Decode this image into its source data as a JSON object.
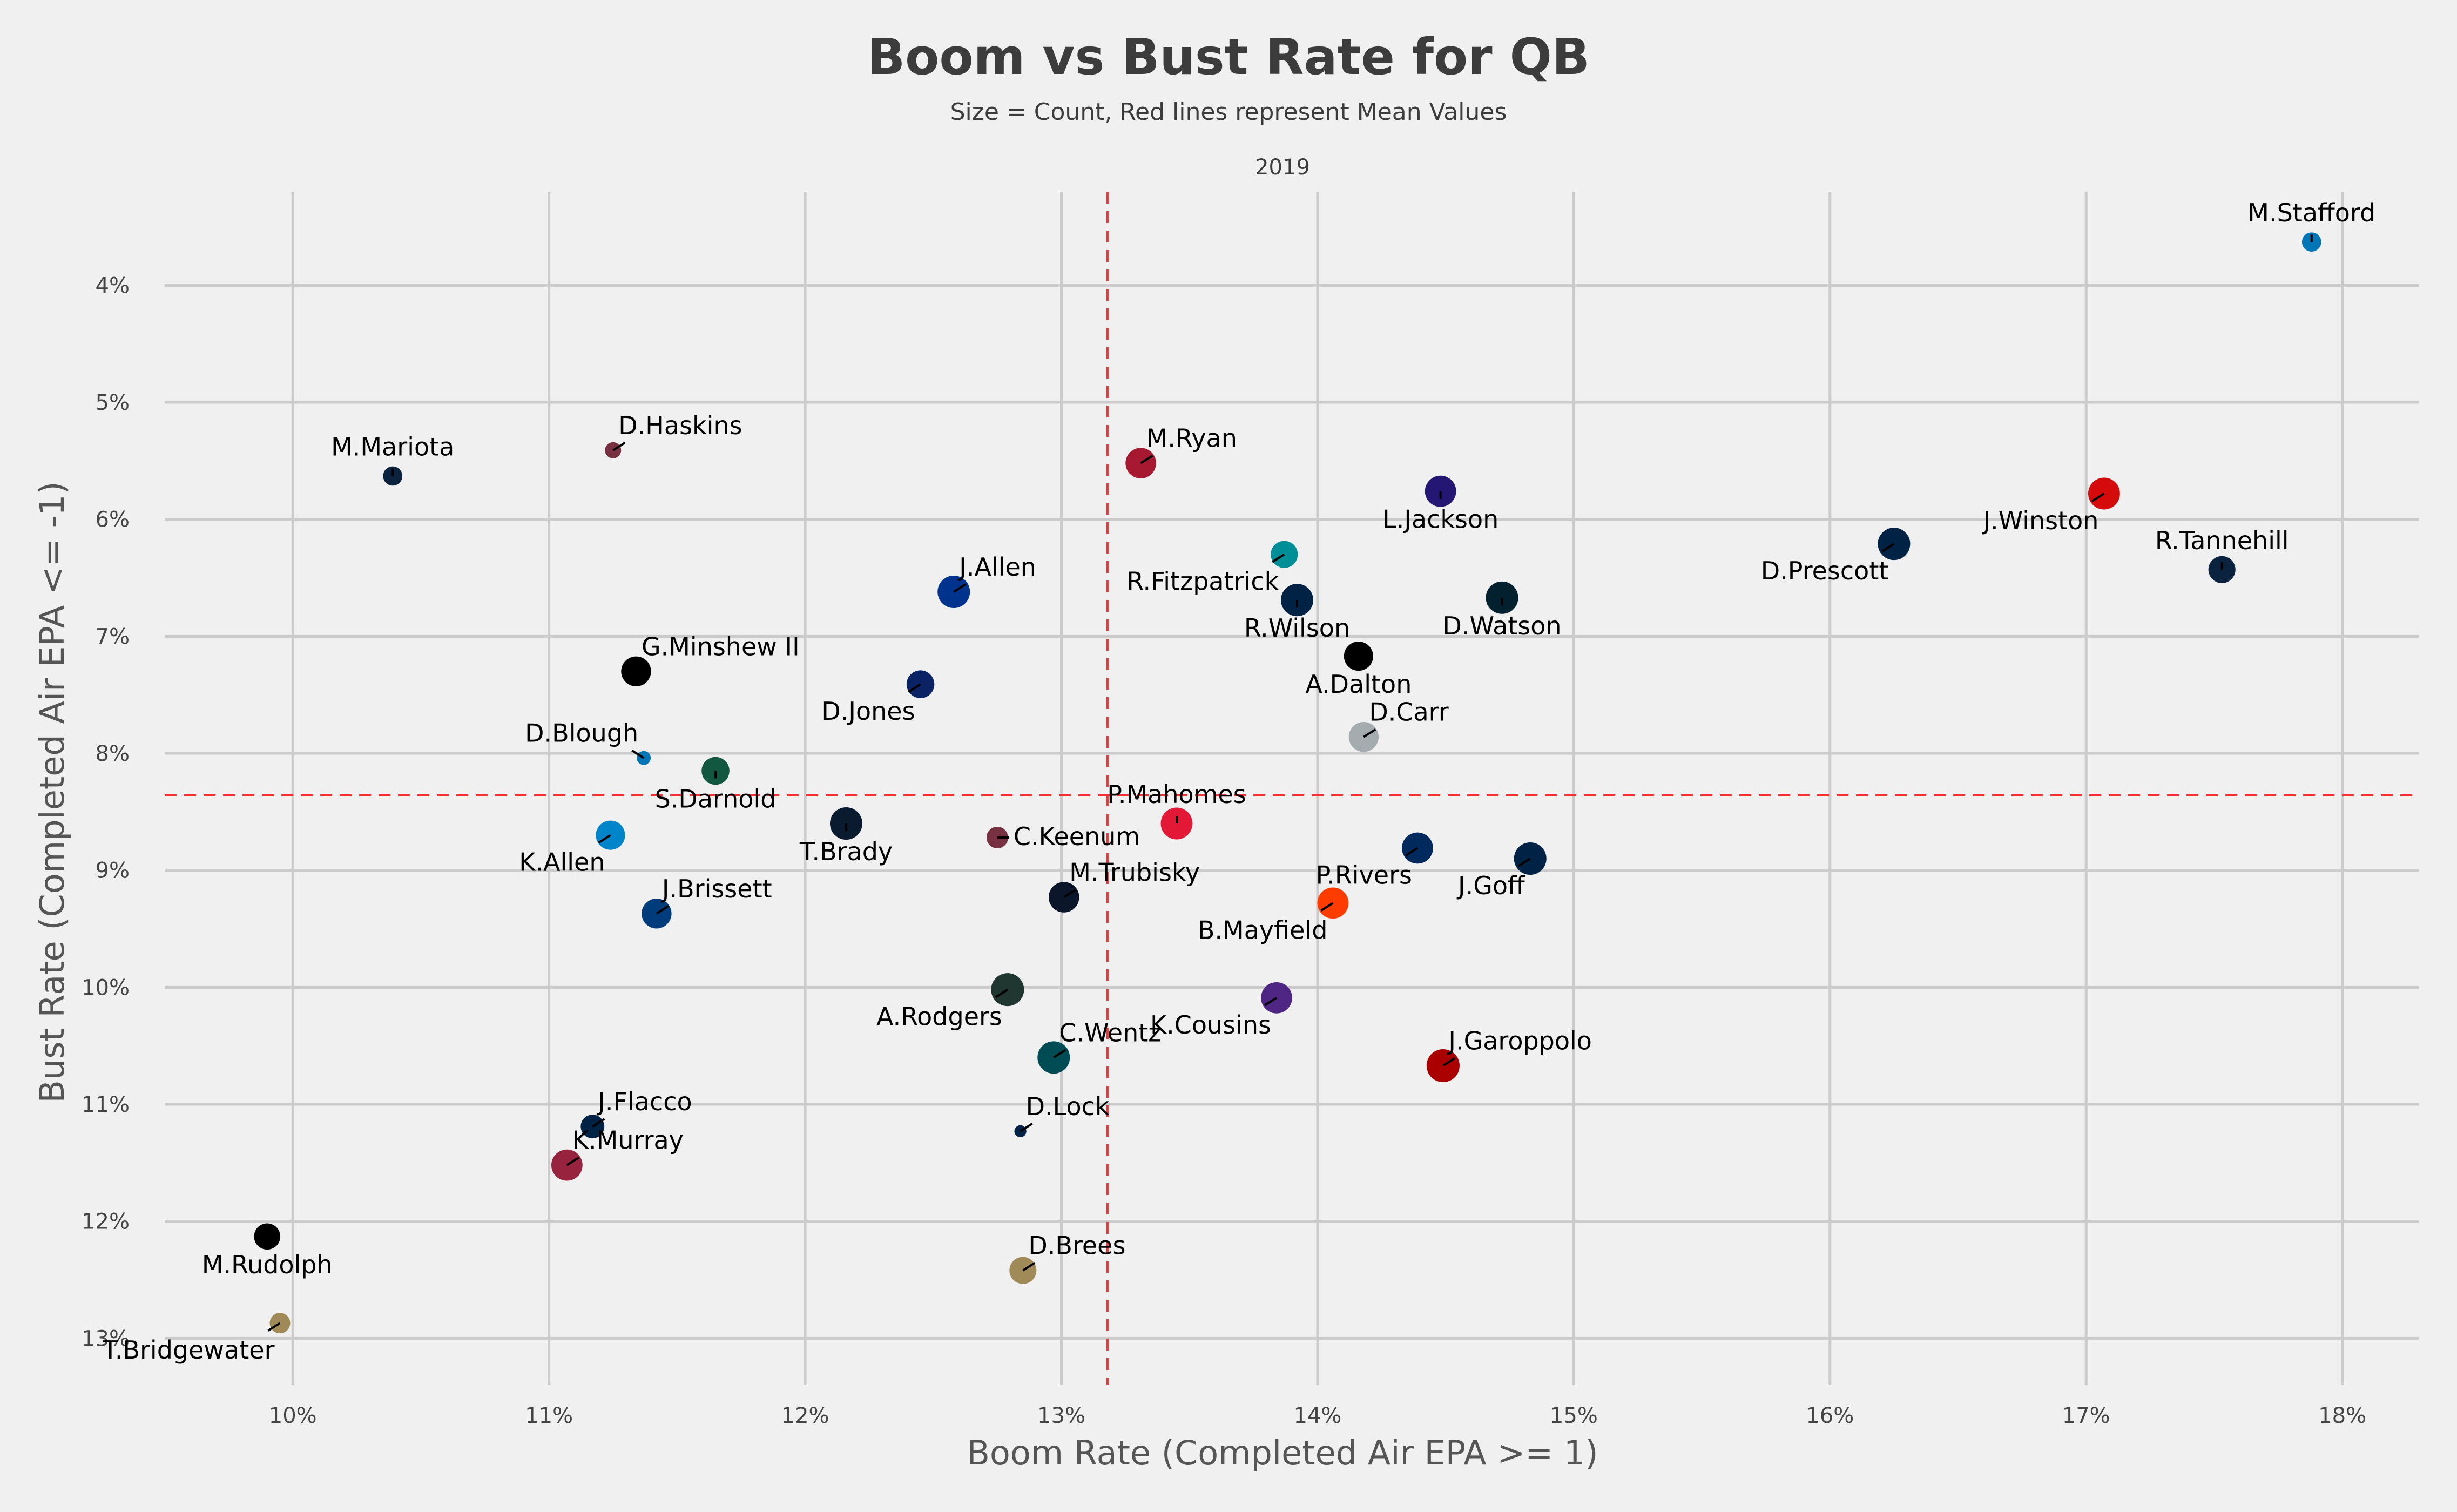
{
  "chart_data": {
    "type": "scatter",
    "title": "Boom vs Bust Rate for QB",
    "subtitle": "Size = Count, Red lines represent Mean Values",
    "facet_label": "2019",
    "xlabel": "Boom Rate (Completed Air EPA >= 1)",
    "ylabel": "Bust Rate (Completed Air EPA <= -1)",
    "x_ticks": [
      "10%",
      "11%",
      "12%",
      "13%",
      "14%",
      "15%",
      "16%",
      "17%",
      "18%"
    ],
    "y_ticks": [
      "4%",
      "5%",
      "6%",
      "7%",
      "8%",
      "9%",
      "10%",
      "11%",
      "12%",
      "13%"
    ],
    "xlim": [
      9.5,
      18.3
    ],
    "ylim": [
      3.2,
      13.4
    ],
    "y_inverted": true,
    "grid": true,
    "mean_x": 13.18,
    "mean_y": 8.36,
    "points": [
      {
        "label": "M.Stafford",
        "x": 17.88,
        "y": 3.63,
        "size": 0.2,
        "color": "#0076b6",
        "label_pos": "above"
      },
      {
        "label": "M.Mariota",
        "x": 10.39,
        "y": 5.63,
        "size": 0.2,
        "color": "#0c2340",
        "label_pos": "above"
      },
      {
        "label": "D.Haskins",
        "x": 11.25,
        "y": 5.41,
        "size": 0.1,
        "color": "#773141",
        "label_pos": "above-right"
      },
      {
        "label": "M.Ryan",
        "x": 13.31,
        "y": 5.52,
        "size": 0.85,
        "color": "#a71930",
        "label_pos": "above-right"
      },
      {
        "label": "L.Jackson",
        "x": 14.48,
        "y": 5.76,
        "size": 0.9,
        "color": "#241773",
        "label_pos": "below"
      },
      {
        "label": "J.Winston",
        "x": 17.07,
        "y": 5.78,
        "size": 0.95,
        "color": "#d50a0a",
        "label_pos": "below-left"
      },
      {
        "label": "D.Prescott",
        "x": 16.25,
        "y": 6.21,
        "size": 1.0,
        "color": "#002244",
        "label_pos": "below-left"
      },
      {
        "label": "R.Tannehill",
        "x": 17.53,
        "y": 6.43,
        "size": 0.6,
        "color": "#0c2340",
        "label_pos": "above"
      },
      {
        "label": "R.Fitzpatrick",
        "x": 13.87,
        "y": 6.3,
        "size": 0.6,
        "color": "#008e97",
        "label_pos": "below-left"
      },
      {
        "label": "J.Allen",
        "x": 12.58,
        "y": 6.62,
        "size": 1.0,
        "color": "#00338d",
        "label_pos": "above-right"
      },
      {
        "label": "R.Wilson",
        "x": 13.92,
        "y": 6.69,
        "size": 1.0,
        "color": "#002244",
        "label_pos": "below"
      },
      {
        "label": "D.Watson",
        "x": 14.72,
        "y": 6.67,
        "size": 1.0,
        "color": "#03202f",
        "label_pos": "below"
      },
      {
        "label": "A.Dalton",
        "x": 14.16,
        "y": 7.17,
        "size": 0.75,
        "color": "#000000",
        "label_pos": "below"
      },
      {
        "label": "G.Minshew II",
        "x": 11.34,
        "y": 7.3,
        "size": 0.8,
        "color": "#000000",
        "label_pos": "above-right"
      },
      {
        "label": "D.Jones",
        "x": 12.45,
        "y": 7.41,
        "size": 0.65,
        "color": "#0b2265",
        "label_pos": "below-left"
      },
      {
        "label": "D.Carr",
        "x": 14.18,
        "y": 7.86,
        "size": 0.8,
        "color": "#a5acaf",
        "label_pos": "above-right"
      },
      {
        "label": "D.Blough",
        "x": 11.37,
        "y": 8.04,
        "size": 0.05,
        "color": "#0076b6",
        "label_pos": "above-left"
      },
      {
        "label": "S.Darnold",
        "x": 11.65,
        "y": 8.15,
        "size": 0.65,
        "color": "#125740",
        "label_pos": "below"
      },
      {
        "label": "T.Brady",
        "x": 12.16,
        "y": 8.6,
        "size": 1.0,
        "color": "#0a1a2f",
        "label_pos": "below"
      },
      {
        "label": "P.Mahomes",
        "x": 13.45,
        "y": 8.6,
        "size": 0.95,
        "color": "#e31837",
        "label_pos": "above"
      },
      {
        "label": "K.Allen",
        "x": 11.24,
        "y": 8.7,
        "size": 0.75,
        "color": "#0085ca",
        "label_pos": "below-left"
      },
      {
        "label": "C.Keenum",
        "x": 12.75,
        "y": 8.72,
        "size": 0.3,
        "color": "#773141",
        "label_pos": "right"
      },
      {
        "label": "J.Goff",
        "x": 14.83,
        "y": 8.9,
        "size": 1.0,
        "color": "#002244",
        "label_pos": "below-left"
      },
      {
        "label": "P.Rivers",
        "x": 14.39,
        "y": 8.81,
        "size": 0.9,
        "color": "#002a5e",
        "label_pos": "below-left"
      },
      {
        "label": "M.Trubisky",
        "x": 13.01,
        "y": 9.23,
        "size": 0.85,
        "color": "#0b162a",
        "label_pos": "above-right"
      },
      {
        "label": "B.Mayfield",
        "x": 14.06,
        "y": 9.28,
        "size": 0.9,
        "color": "#ff3c00",
        "label_pos": "below-left"
      },
      {
        "label": "J.Brissett",
        "x": 11.42,
        "y": 9.37,
        "size": 0.8,
        "color": "#003b7b",
        "label_pos": "above-right"
      },
      {
        "label": "A.Rodgers",
        "x": 12.79,
        "y": 10.02,
        "size": 1.05,
        "color": "#203731",
        "label_pos": "below-left"
      },
      {
        "label": "K.Cousins",
        "x": 13.84,
        "y": 10.09,
        "size": 0.9,
        "color": "#4f2683",
        "label_pos": "below-left"
      },
      {
        "label": "C.Wentz",
        "x": 12.97,
        "y": 10.6,
        "size": 1.0,
        "color": "#004c54",
        "label_pos": "above-right"
      },
      {
        "label": "J.Garoppolo",
        "x": 14.49,
        "y": 10.67,
        "size": 1.05,
        "color": "#aa0000",
        "label_pos": "above-right"
      },
      {
        "label": "J.Flacco",
        "x": 11.17,
        "y": 11.19,
        "size": 0.4,
        "color": "#002244",
        "label_pos": "above-right"
      },
      {
        "label": "D.Lock",
        "x": 12.84,
        "y": 11.23,
        "size": 0.02,
        "color": "#002244",
        "label_pos": "above-right"
      },
      {
        "label": "K.Murray",
        "x": 11.07,
        "y": 11.52,
        "size": 0.9,
        "color": "#97233f",
        "label_pos": "above-right"
      },
      {
        "label": "M.Rudolph",
        "x": 9.9,
        "y": 12.13,
        "size": 0.55,
        "color": "#000000",
        "label_pos": "below"
      },
      {
        "label": "D.Brees",
        "x": 12.85,
        "y": 12.42,
        "size": 0.6,
        "color": "#a08a58",
        "label_pos": "above-right"
      },
      {
        "label": "T.Bridgewater",
        "x": 9.95,
        "y": 12.87,
        "size": 0.25,
        "color": "#a08a58",
        "label_pos": "below-left"
      }
    ]
  }
}
